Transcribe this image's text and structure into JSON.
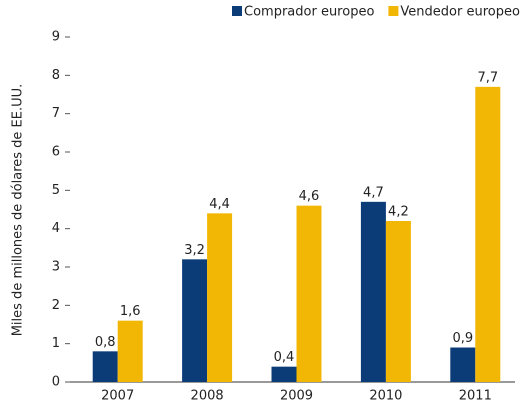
{
  "chart_data": {
    "type": "bar",
    "y_label": "Miles de millones de dólares de EE.UU.",
    "categories": [
      "2007",
      "2008",
      "2009",
      "2010",
      "2011"
    ],
    "series": [
      {
        "name": "Comprador europeo",
        "color": "#0b3c78",
        "values": [
          0.8,
          3.2,
          0.4,
          4.7,
          0.9
        ],
        "value_labels": [
          "0,8",
          "3,2",
          "0,4",
          "4,7",
          "0,9"
        ]
      },
      {
        "name": "Vendedor europeo",
        "color": "#f2b705",
        "values": [
          1.6,
          4.4,
          4.6,
          4.2,
          7.7
        ],
        "value_labels": [
          "1,6",
          "4,4",
          "4,6",
          "4,2",
          "7,7"
        ]
      }
    ],
    "ylim": [
      0,
      9
    ],
    "yticks": [
      0,
      1,
      2,
      3,
      4,
      5,
      6,
      7,
      8,
      9
    ],
    "legend": "top-right"
  }
}
